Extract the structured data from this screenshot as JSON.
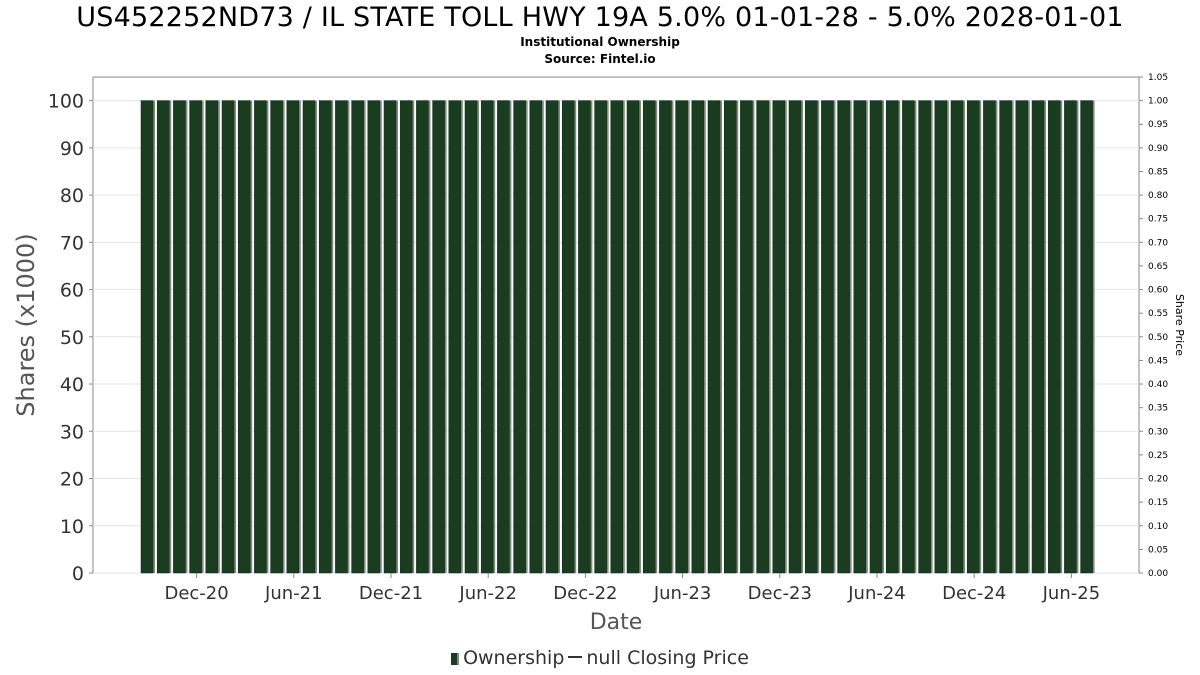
{
  "header": {
    "title": "US452252ND73 / IL STATE TOLL HWY 19A 5.0% 01-01-28 - 5.0% 2028-01-01",
    "subtitle1": "Institutional Ownership",
    "subtitle2": "Source: Fintel.io"
  },
  "legend": {
    "ownership": "Ownership",
    "closing_price": "null Closing Price"
  },
  "colors": {
    "bar": "#1a3d22",
    "bar_shadow": "#7d8c7d",
    "grid": "#e6e6e6",
    "axis": "#888888"
  },
  "chart_data": {
    "type": "bar",
    "xlabel": "Date",
    "ylabel": "Shares (x1000)",
    "y2label": "Share Price",
    "ylim": [
      0,
      105
    ],
    "y2lim": [
      0,
      1.05
    ],
    "yticks": [
      "0",
      "10",
      "20",
      "30",
      "40",
      "50",
      "60",
      "70",
      "80",
      "90",
      "100"
    ],
    "y2ticks": [
      "0.00",
      "0.05",
      "0.10",
      "0.15",
      "0.20",
      "0.25",
      "0.30",
      "0.35",
      "0.40",
      "0.45",
      "0.50",
      "0.55",
      "0.60",
      "0.65",
      "0.70",
      "0.75",
      "0.80",
      "0.85",
      "0.90",
      "0.95",
      "1.00",
      "1.05"
    ],
    "xticks": [
      "Dec-20",
      "Jun-21",
      "Dec-21",
      "Jun-22",
      "Dec-22",
      "Jun-23",
      "Dec-23",
      "Jun-24",
      "Dec-24",
      "Jun-25"
    ],
    "grid": true,
    "legend_position": "bottom",
    "series": [
      {
        "name": "Ownership",
        "categories": [
          "Sep-20",
          "Oct-20",
          "Nov-20",
          "Dec-20",
          "Jan-21",
          "Feb-21",
          "Mar-21",
          "Apr-21",
          "May-21",
          "Jun-21",
          "Jul-21",
          "Aug-21",
          "Sep-21",
          "Oct-21",
          "Nov-21",
          "Dec-21",
          "Jan-22",
          "Feb-22",
          "Mar-22",
          "Apr-22",
          "May-22",
          "Jun-22",
          "Jul-22",
          "Aug-22",
          "Sep-22",
          "Oct-22",
          "Nov-22",
          "Dec-22",
          "Jan-23",
          "Feb-23",
          "Mar-23",
          "Apr-23",
          "May-23",
          "Jun-23",
          "Jul-23",
          "Aug-23",
          "Sep-23",
          "Oct-23",
          "Nov-23",
          "Dec-23",
          "Jan-24",
          "Feb-24",
          "Mar-24",
          "Apr-24",
          "May-24",
          "Jun-24",
          "Jul-24",
          "Aug-24",
          "Sep-24",
          "Oct-24",
          "Nov-24",
          "Dec-24",
          "Jan-25",
          "Feb-25",
          "Mar-25",
          "Apr-25",
          "May-25",
          "Jun-25",
          "Jul-25"
        ],
        "values": [
          100,
          100,
          100,
          100,
          100,
          100,
          100,
          100,
          100,
          100,
          100,
          100,
          100,
          100,
          100,
          100,
          100,
          100,
          100,
          100,
          100,
          100,
          100,
          100,
          100,
          100,
          100,
          100,
          100,
          100,
          100,
          100,
          100,
          100,
          100,
          100,
          100,
          100,
          100,
          100,
          100,
          100,
          100,
          100,
          100,
          100,
          100,
          100,
          100,
          100,
          100,
          100,
          100,
          100,
          100,
          100,
          100,
          100,
          100
        ]
      }
    ]
  }
}
